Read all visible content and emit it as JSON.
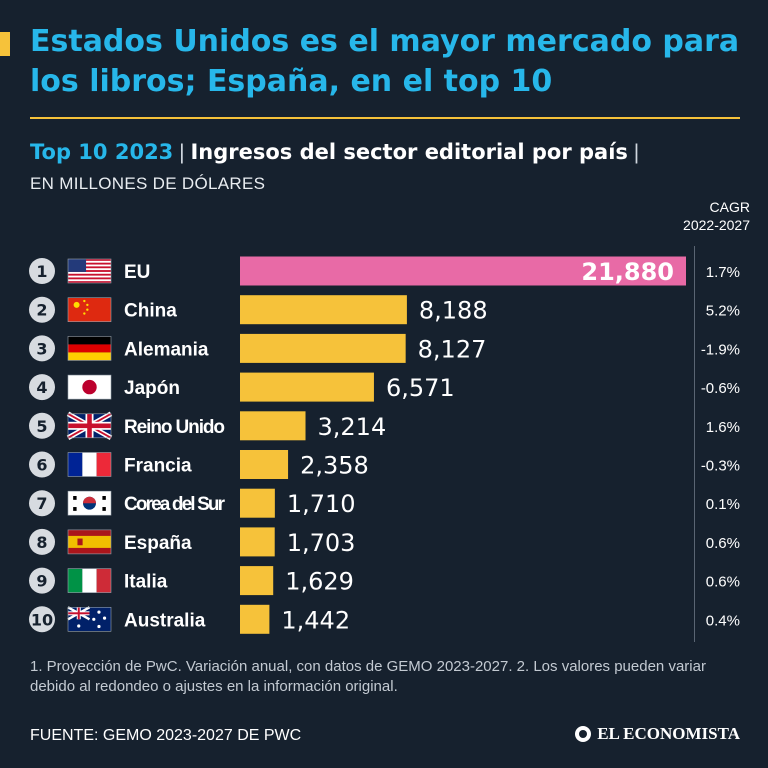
{
  "header": {
    "title": "Estados Unidos es el mayor mercado para los libros; España, en el top 10",
    "subtitle_year": "Top 10 2023",
    "subtitle_sep": "|",
    "subtitle_text": "Ingresos del sector editorial por país",
    "units": "EN MILLONES DE DÓLARES",
    "cagr_label": "CAGR",
    "cagr_period": "2022-2027"
  },
  "colors": {
    "accent": "#f6c23a",
    "title": "#27b7ea",
    "highlight": "#e86aa6",
    "background": "#16212e"
  },
  "chart_data": {
    "type": "bar",
    "orientation": "horizontal",
    "categories": [
      "EU",
      "China",
      "Alemania",
      "Japón",
      "Reino Unido",
      "Francia",
      "Corea del Sur",
      "España",
      "Italia",
      "Australia"
    ],
    "ranks": [
      "1",
      "2",
      "3",
      "4",
      "5",
      "6",
      "7",
      "8",
      "9",
      "10"
    ],
    "values": [
      21880,
      8188,
      8127,
      6571,
      3214,
      2358,
      1710,
      1703,
      1629,
      1442
    ],
    "value_labels": [
      "21,880",
      "8,188",
      "8,127",
      "6,571",
      "3,214",
      "2,358",
      "1,710",
      "1,703",
      "1,629",
      "1,442"
    ],
    "cagr": [
      "1.7%",
      "5.2%",
      "-1.9%",
      "-0.6%",
      "1.6%",
      "-0.3%",
      "0.1%",
      "0.6%",
      "0.6%",
      "0.4%"
    ],
    "flag_icons": [
      "usa-flag-icon",
      "china-flag-icon",
      "germany-flag-icon",
      "japan-flag-icon",
      "uk-flag-icon",
      "france-flag-icon",
      "south-korea-flag-icon",
      "spain-flag-icon",
      "italy-flag-icon",
      "australia-flag-icon"
    ],
    "highlight_index": 0,
    "bar_color": "#f6c23a",
    "highlight_color": "#e86aa6",
    "xlim": [
      0,
      21880
    ],
    "grid": false,
    "legend": "none"
  },
  "footnote": "1. Proyección de PwC. Variación anual, con datos de GEMO 2023-2027. 2. Los valores pueden variar debido al redondeo o ajustes en la información original.",
  "source": "FUENTE: GEMO 2023-2027 DE PWC",
  "brand": "EL ECONOMISTA"
}
